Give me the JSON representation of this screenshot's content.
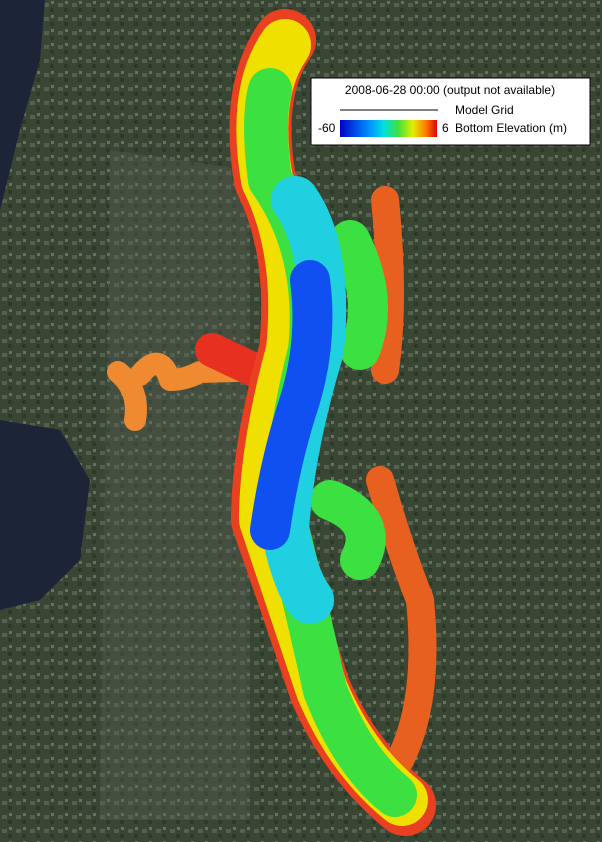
{
  "legend": {
    "timestamp": "2008-06-28 00:00 (output not available)",
    "grid_label": "Model Grid",
    "colorbar": {
      "min": -60,
      "max": 6,
      "label": "Bottom Elevation (m)"
    }
  }
}
